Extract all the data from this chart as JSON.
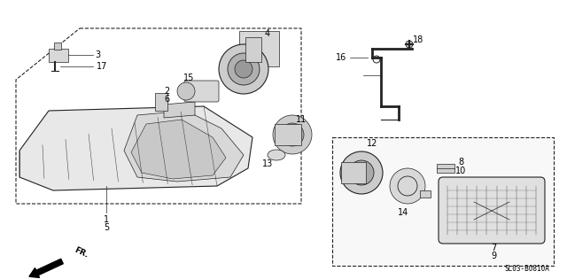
{
  "bg_color": "#f0f0f0",
  "line_color": "#222222",
  "diagram_code": "SL03-B0810A",
  "figsize": [
    6.4,
    3.15
  ],
  "dpi": 100
}
